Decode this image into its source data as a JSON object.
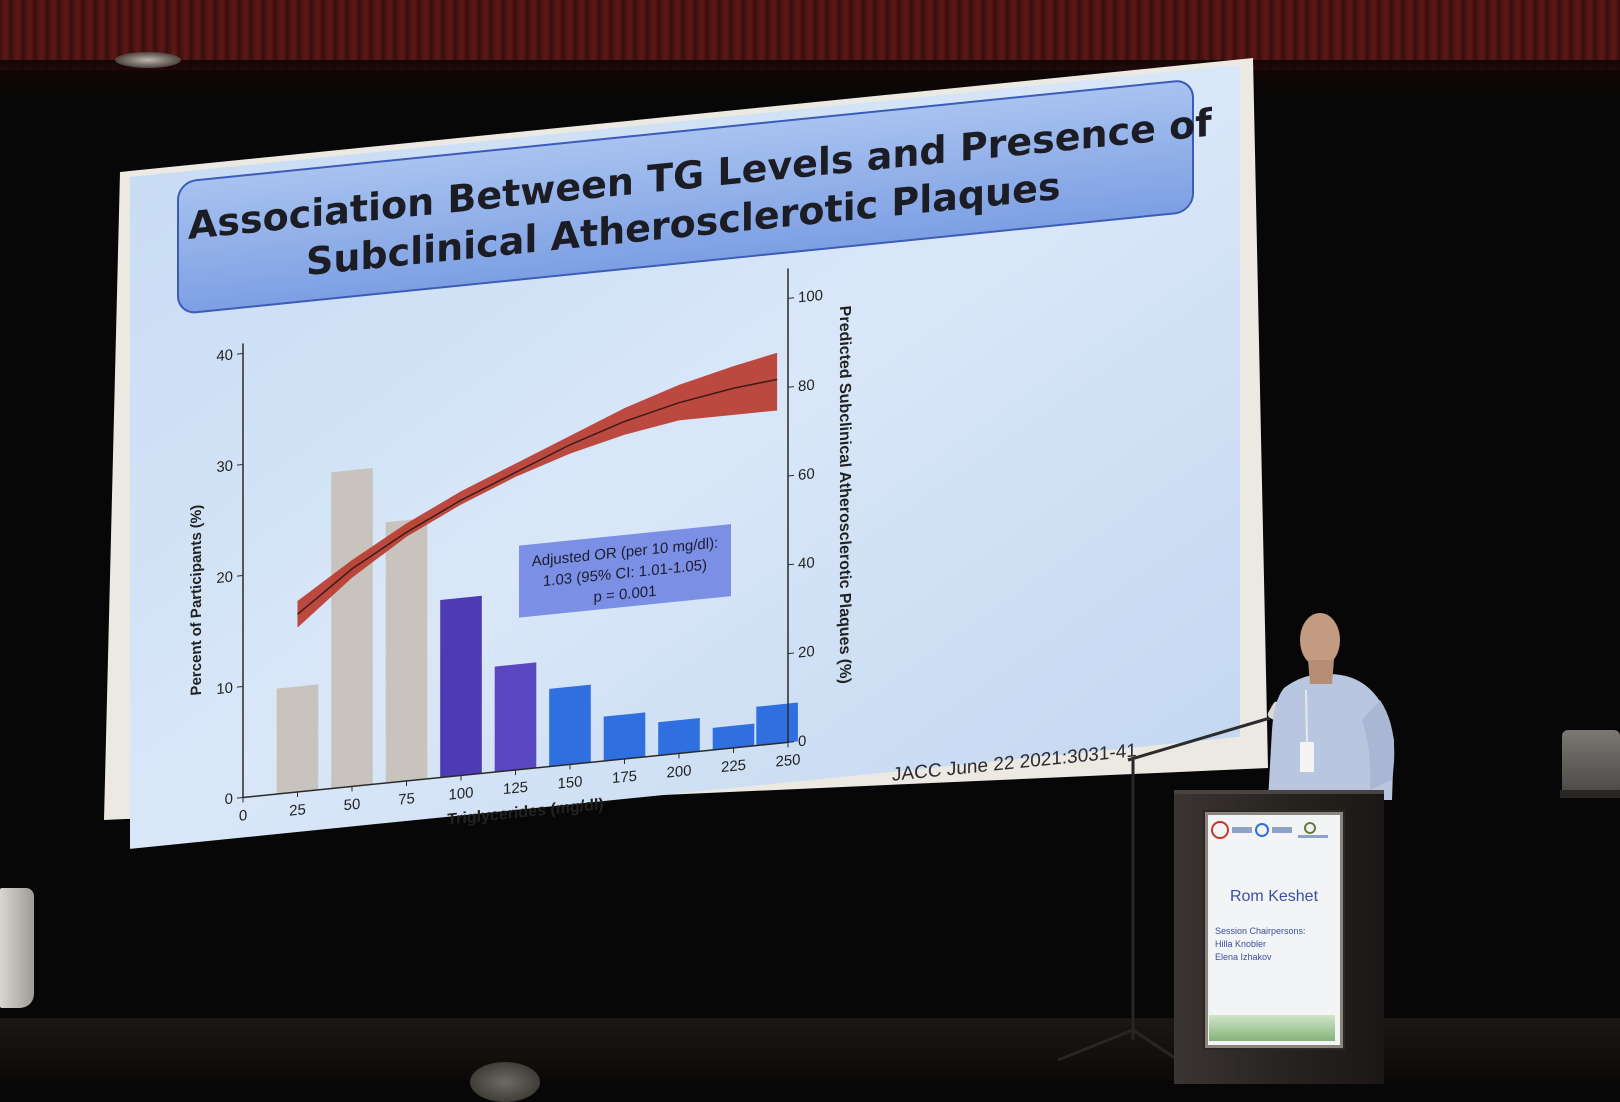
{
  "slide": {
    "title_line1": "Association Between TG Levels and Presence of",
    "title_line2": "Subclinical Atherosclerotic Plaques",
    "citation": "JACC June 22 2021:3031-41",
    "annotation": {
      "line1": "Adjusted OR (per 10 mg/dl):",
      "line2": "1.03 (95% CI: 1.01-1.05)",
      "line3": "p = 0.001"
    }
  },
  "chart_data": {
    "type": "bar",
    "xlabel": "Triglycerides (mg/dl)",
    "ylabel": "Percent of Participants (%)",
    "y2label": "Predicted Subclinical Atherosclerotic Plaques (%)",
    "x_ticks": [
      "0",
      "25",
      "50",
      "75",
      "100",
      "125",
      "150",
      "175",
      "200",
      "225",
      "250"
    ],
    "y_ticks": [
      "0",
      "10",
      "20",
      "30",
      "40"
    ],
    "y2_ticks": [
      "0",
      "20",
      "40",
      "60",
      "80",
      "100"
    ],
    "xlim": [
      0,
      250
    ],
    "ylim": [
      0,
      40
    ],
    "y2lim": [
      0,
      100
    ],
    "bins": [
      25,
      50,
      75,
      100,
      125,
      150,
      175,
      200,
      225
    ],
    "bin_width": 20,
    "values": [
      9.5,
      28.5,
      23.5,
      16.0,
      9.5,
      7.0,
      4.0,
      3.0,
      2.0
    ],
    "bar_colors": [
      "#c8c4bd",
      "#c8c4bd",
      "#c8c4bd",
      "#4d3ab4",
      "#5a46be",
      "#2f6fe0",
      "#2f6fe0",
      "#2f6fe0",
      "#2f6fe0"
    ],
    "extra_bar": {
      "x": 245,
      "value": 3.5,
      "color": "#2f6fe0"
    },
    "curve": {
      "color": "#b8372a",
      "x": [
        25,
        50,
        75,
        100,
        125,
        150,
        175,
        200,
        225,
        245
      ],
      "y": [
        40,
        49,
        56,
        62,
        67,
        72,
        76,
        79,
        81,
        82
      ],
      "lower": [
        37,
        47,
        55,
        61,
        66,
        70,
        73,
        75,
        75,
        75
      ],
      "upper": [
        43,
        51,
        58,
        64,
        69,
        74,
        79,
        83,
        86,
        88
      ]
    },
    "legend": "none",
    "grid": false
  },
  "podium": {
    "name": "Rom Keshet",
    "chairs_label": "Session Chairpersons:",
    "chair1": "Hilla Knobler",
    "chair2": "Elena Izhakov"
  },
  "colors": {
    "background": "#080707",
    "screen": "#cddff5",
    "title_box": "#8fb0ea",
    "annotation_box": "#7a8ee6",
    "curve": "#b8372a"
  }
}
